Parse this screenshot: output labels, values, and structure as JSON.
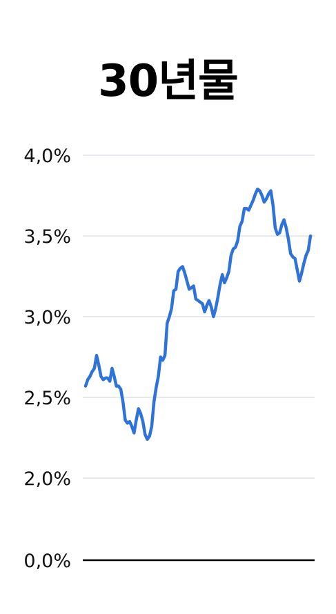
{
  "chart_data": {
    "type": "line",
    "title": "30년물",
    "xlabel": "",
    "ylabel": "",
    "y_ticks": [
      "4,0%",
      "3,5%",
      "3,0%",
      "2,5%",
      "2,0%",
      "0,0%"
    ],
    "grid": true,
    "legend": "none",
    "colors": {
      "line": "#2f73d9",
      "grid": "#dde4ec",
      "baseline": "#000000"
    },
    "series": [
      {
        "values": [
          2.57,
          2.61,
          2.63,
          2.66,
          2.68,
          2.76,
          2.7,
          2.63,
          2.61,
          2.62,
          2.62,
          2.6,
          2.68,
          2.63,
          2.57,
          2.57,
          2.55,
          2.47,
          2.36,
          2.34,
          2.35,
          2.32,
          2.28,
          2.36,
          2.43,
          2.4,
          2.35,
          2.27,
          2.24,
          2.26,
          2.32,
          2.47,
          2.56,
          2.63,
          2.75,
          2.73,
          2.76,
          2.96,
          3.0,
          3.05,
          3.16,
          3.17,
          3.28,
          3.3,
          3.31,
          3.27,
          3.22,
          3.17,
          3.18,
          3.19,
          3.11,
          3.1,
          3.09,
          3.08,
          3.03,
          3.07,
          3.1,
          3.06,
          3.0,
          3.05,
          3.12,
          3.2,
          3.26,
          3.21,
          3.24,
          3.28,
          3.38,
          3.42,
          3.43,
          3.47,
          3.56,
          3.59,
          3.67,
          3.67,
          3.66,
          3.69,
          3.72,
          3.76,
          3.79,
          3.78,
          3.75,
          3.71,
          3.73,
          3.76,
          3.78,
          3.69,
          3.55,
          3.51,
          3.52,
          3.57,
          3.6,
          3.55,
          3.48,
          3.39,
          3.37,
          3.36,
          3.29,
          3.22,
          3.27,
          3.33,
          3.38,
          3.41,
          3.5
        ]
      }
    ]
  }
}
